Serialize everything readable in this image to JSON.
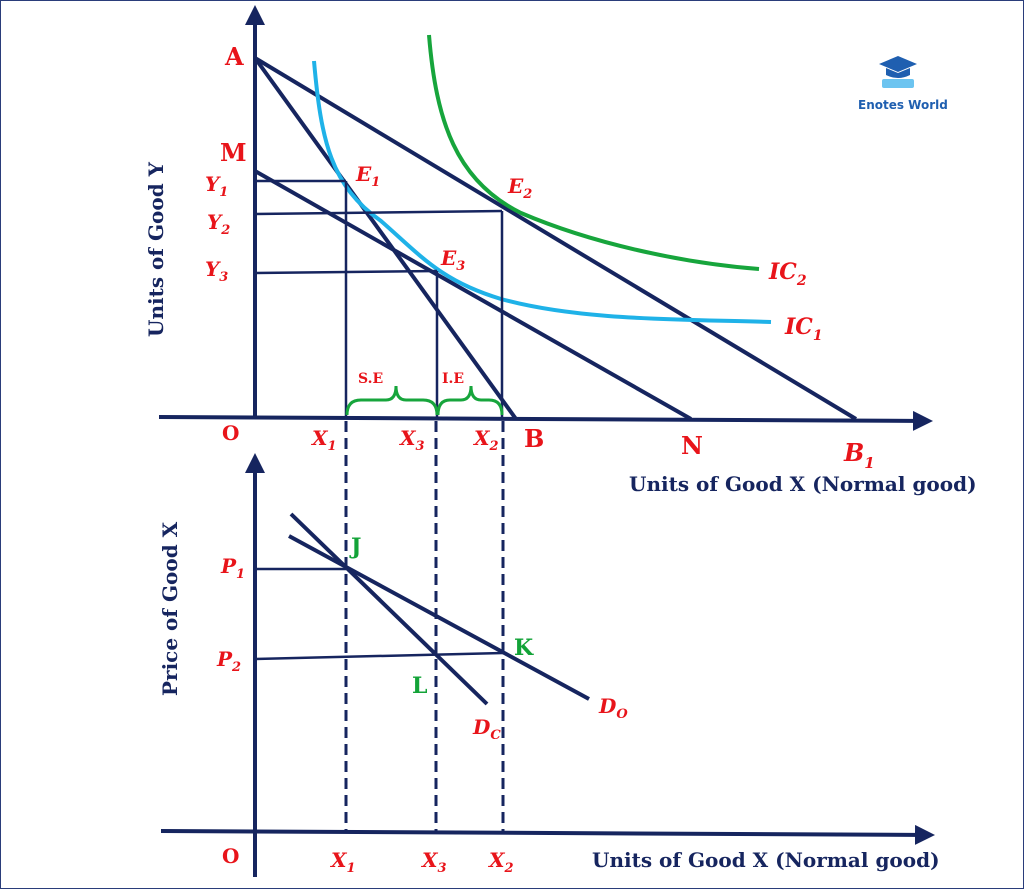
{
  "logo": {
    "text": "Enotes World"
  },
  "top_panel": {
    "ylabel": "Units of Good Y",
    "xlabel": "Units of Good X (Normal good)",
    "origin": "O",
    "points": {
      "A": "A",
      "M": "M",
      "B": "B",
      "N": "N",
      "B1_main": "B",
      "B1_sub": "1"
    },
    "y_ticks": [
      {
        "main": "Y",
        "sub": "1"
      },
      {
        "main": "Y",
        "sub": "2"
      },
      {
        "main": "Y",
        "sub": "3"
      }
    ],
    "x_ticks": [
      {
        "main": "X",
        "sub": "1"
      },
      {
        "main": "X",
        "sub": "3"
      },
      {
        "main": "X",
        "sub": "2"
      }
    ],
    "equilibria": [
      {
        "main": "E",
        "sub": "1"
      },
      {
        "main": "E",
        "sub": "2"
      },
      {
        "main": "E",
        "sub": "3"
      }
    ],
    "curves": [
      {
        "main": "IC",
        "sub": "2"
      },
      {
        "main": "IC",
        "sub": "1"
      }
    ],
    "effects": {
      "substitution": "S.E",
      "income": "I.E"
    }
  },
  "bottom_panel": {
    "ylabel": "Price of Good X",
    "xlabel": "Units of Good X (Normal good)",
    "origin": "O",
    "p_ticks": [
      {
        "main": "P",
        "sub": "1"
      },
      {
        "main": "P",
        "sub": "2"
      }
    ],
    "x_ticks": [
      {
        "main": "X",
        "sub": "1"
      },
      {
        "main": "X",
        "sub": "3"
      },
      {
        "main": "X",
        "sub": "2"
      }
    ],
    "points": {
      "J": "J",
      "K": "K",
      "L": "L"
    },
    "curves": [
      {
        "main": "D",
        "sub": "O"
      },
      {
        "main": "D",
        "sub": "C"
      }
    ]
  },
  "colors": {
    "navy": "#16255f",
    "red": "#e8141a",
    "green": "#13a338",
    "ic1": "#1fb2e8",
    "ic2": "#17a53c"
  }
}
